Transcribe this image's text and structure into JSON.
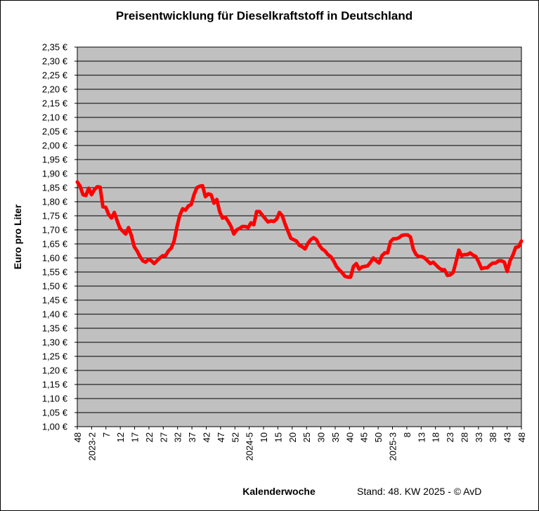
{
  "chart_data": {
    "type": "line",
    "title": "Preisentwicklung für Dieselkraftstoff in Deutschland",
    "xlabel": "Kalenderwoche",
    "ylabel": "Euro pro Liter",
    "footnote": "Stand:  48. KW 2025 - © AvD",
    "ylim": [
      1.0,
      2.35
    ],
    "ytick_step": 0.05,
    "y_tick_labels": [
      "1,00 €",
      "1,05 €",
      "1,10 €",
      "1,15 €",
      "1,20 €",
      "1,25 €",
      "1,30 €",
      "1,35 €",
      "1,40 €",
      "1,45 €",
      "1,50 €",
      "1,55 €",
      "1,60 €",
      "1,65 €",
      "1,70 €",
      "1,75 €",
      "1,80 €",
      "1,85 €",
      "1,90 €",
      "1,95 €",
      "2,00 €",
      "2,05 €",
      "2,10 €",
      "2,15 €",
      "2,20 €",
      "2,25 €",
      "2,30 €",
      "2,35 €"
    ],
    "x_tick_labels": [
      "48",
      "2023-2",
      "7",
      "12",
      "17",
      "22",
      "27",
      "32",
      "37",
      "42",
      "47",
      "52",
      "2024-5",
      "10",
      "15",
      "20",
      "25",
      "30",
      "35",
      "40",
      "45",
      "50",
      "2025-3",
      "8",
      "13",
      "18",
      "23",
      "28",
      "33",
      "38",
      "43",
      "48"
    ],
    "grid": true,
    "colors": {
      "line": "#ff0000",
      "plot_bg": "#c0c0c0",
      "grid": "#000000"
    },
    "series": [
      {
        "values": [
          1.87,
          1.855,
          1.825,
          1.822,
          1.848,
          1.825,
          1.843,
          1.853,
          1.852,
          1.782,
          1.78,
          1.755,
          1.742,
          1.762,
          1.732,
          1.705,
          1.695,
          1.685,
          1.708,
          1.68,
          1.64,
          1.625,
          1.605,
          1.59,
          1.585,
          1.595,
          1.59,
          1.58,
          1.59,
          1.6,
          1.608,
          1.608,
          1.625,
          1.635,
          1.66,
          1.71,
          1.752,
          1.775,
          1.77,
          1.785,
          1.79,
          1.825,
          1.85,
          1.855,
          1.857,
          1.818,
          1.828,
          1.825,
          1.795,
          1.808,
          1.765,
          1.742,
          1.745,
          1.73,
          1.712,
          1.685,
          1.7,
          1.705,
          1.712,
          1.712,
          1.708,
          1.725,
          1.718,
          1.765,
          1.765,
          1.752,
          1.74,
          1.728,
          1.732,
          1.73,
          1.738,
          1.762,
          1.75,
          1.72,
          1.695,
          1.67,
          1.665,
          1.66,
          1.645,
          1.64,
          1.632,
          1.652,
          1.665,
          1.672,
          1.665,
          1.645,
          1.632,
          1.625,
          1.612,
          1.605,
          1.59,
          1.57,
          1.558,
          1.548,
          1.535,
          1.532,
          1.532,
          1.57,
          1.58,
          1.56,
          1.568,
          1.57,
          1.572,
          1.585,
          1.6,
          1.59,
          1.582,
          1.608,
          1.618,
          1.618,
          1.658,
          1.668,
          1.668,
          1.672,
          1.68,
          1.682,
          1.682,
          1.675,
          1.632,
          1.612,
          1.605,
          1.605,
          1.6,
          1.59,
          1.58,
          1.585,
          1.575,
          1.565,
          1.558,
          1.558,
          1.538,
          1.54,
          1.548,
          1.585,
          1.628,
          1.608,
          1.612,
          1.612,
          1.618,
          1.61,
          1.605,
          1.585,
          1.562,
          1.565,
          1.565,
          1.575,
          1.582,
          1.582,
          1.59,
          1.59,
          1.585,
          1.552,
          1.59,
          1.61,
          1.638,
          1.64,
          1.66
        ]
      }
    ]
  }
}
